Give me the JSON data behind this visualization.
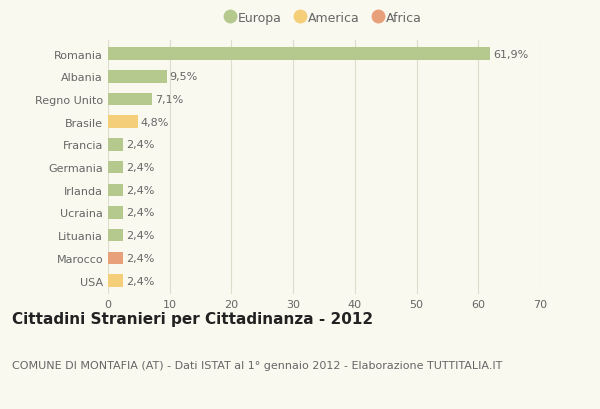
{
  "categories": [
    "Romania",
    "Albania",
    "Regno Unito",
    "Brasile",
    "Francia",
    "Germania",
    "Irlanda",
    "Ucraina",
    "Lituania",
    "Marocco",
    "USA"
  ],
  "values": [
    61.9,
    9.5,
    7.1,
    4.8,
    2.4,
    2.4,
    2.4,
    2.4,
    2.4,
    2.4,
    2.4
  ],
  "labels": [
    "61,9%",
    "9,5%",
    "7,1%",
    "4,8%",
    "2,4%",
    "2,4%",
    "2,4%",
    "2,4%",
    "2,4%",
    "2,4%",
    "2,4%"
  ],
  "colors": [
    "#b5c98e",
    "#b5c98e",
    "#b5c98e",
    "#f5ce7a",
    "#b5c98e",
    "#b5c98e",
    "#b5c98e",
    "#b5c98e",
    "#b5c98e",
    "#e8a07a",
    "#f5ce7a"
  ],
  "legend_labels": [
    "Europa",
    "America",
    "Africa"
  ],
  "legend_colors": [
    "#b5c98e",
    "#f5ce7a",
    "#e8a07a"
  ],
  "xlim": [
    0,
    70
  ],
  "xticks": [
    0,
    10,
    20,
    30,
    40,
    50,
    60,
    70
  ],
  "title": "Cittadini Stranieri per Cittadinanza - 2012",
  "subtitle": "COMUNE DI MONTAFIA (AT) - Dati ISTAT al 1° gennaio 2012 - Elaborazione TUTTITALIA.IT",
  "bg_color": "#f9f9f0",
  "bar_height": 0.55,
  "title_fontsize": 11,
  "subtitle_fontsize": 8,
  "label_fontsize": 8,
  "tick_fontsize": 8,
  "legend_fontsize": 9,
  "grid_color": "#ddddcc",
  "text_color": "#666666",
  "title_color": "#222222"
}
